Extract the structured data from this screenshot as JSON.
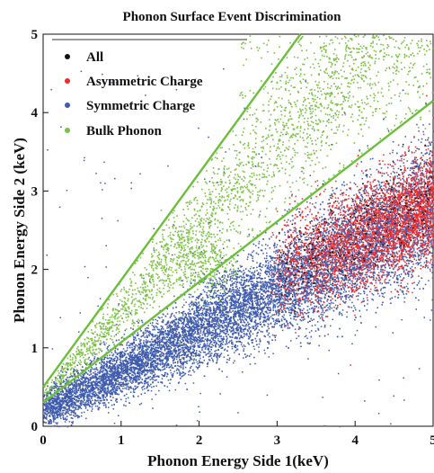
{
  "chart_data": {
    "type": "scatter",
    "title": "Phonon Surface Event Discrimination",
    "xlabel": "Phonon Energy Side 1(keV)",
    "ylabel": "Phonon Energy Side 2 (keV)",
    "xlim": [
      0,
      5
    ],
    "ylim": [
      0,
      5
    ],
    "xticks": [
      "0",
      "1",
      "2",
      "3",
      "4",
      "5"
    ],
    "yticks": [
      "0",
      "1",
      "2",
      "3",
      "4",
      "5"
    ],
    "grid": false,
    "legend_position": "top-left",
    "series": [
      {
        "name": "All",
        "color": "#111111",
        "marker": "dot",
        "sample_points": [
          [
            3.1,
            1.9
          ],
          [
            3.4,
            2.1
          ],
          [
            3.8,
            2.4
          ],
          [
            4.2,
            2.6
          ],
          [
            4.6,
            2.8
          ],
          [
            2.9,
            1.6
          ],
          [
            3.6,
            2.3
          ],
          [
            4.9,
            3.0
          ]
        ]
      },
      {
        "name": "Asymmetric Charge",
        "color": "#ee2a2a",
        "marker": "dot",
        "x_range": [
          2.6,
          5.0
        ],
        "y_range": [
          1.2,
          3.6
        ],
        "sample_points": [
          [
            3.0,
            1.8
          ],
          [
            3.5,
            2.1
          ],
          [
            4.0,
            2.3
          ],
          [
            4.5,
            2.6
          ],
          [
            5.0,
            2.8
          ],
          [
            4.2,
            3.0
          ],
          [
            4.8,
            3.3
          ]
        ]
      },
      {
        "name": "Symmetric Charge",
        "color": "#3d5aad",
        "marker": "dot",
        "x_range": [
          0.0,
          5.0
        ],
        "y_range": [
          0.0,
          3.2
        ],
        "sample_points": [
          [
            0.1,
            0.2
          ],
          [
            0.5,
            0.4
          ],
          [
            1.0,
            0.7
          ],
          [
            1.5,
            0.9
          ],
          [
            2.0,
            1.15
          ],
          [
            2.5,
            1.35
          ],
          [
            3.0,
            1.65
          ],
          [
            3.5,
            1.9
          ],
          [
            4.0,
            2.15
          ],
          [
            4.5,
            2.4
          ],
          [
            5.0,
            2.7
          ]
        ]
      },
      {
        "name": "Bulk Phonon",
        "color": "#7ac143",
        "marker": "dot",
        "x_range": [
          0.0,
          5.0
        ],
        "y_range": [
          0.3,
          5.0
        ],
        "sample_points": [
          [
            0.3,
            0.6
          ],
          [
            1.0,
            1.3
          ],
          [
            1.8,
            2.0
          ],
          [
            2.0,
            2.1
          ],
          [
            2.5,
            2.6
          ],
          [
            3.0,
            3.1
          ],
          [
            3.5,
            3.4
          ],
          [
            4.0,
            4.0
          ],
          [
            4.5,
            4.2
          ]
        ]
      }
    ],
    "cut_lines": [
      {
        "color": "#6cbf3a",
        "points": [
          [
            0.0,
            0.5
          ],
          [
            3.3,
            5.0
          ]
        ]
      },
      {
        "color": "#6cbf3a",
        "points": [
          [
            0.0,
            0.3
          ],
          [
            5.0,
            4.15
          ]
        ]
      }
    ]
  }
}
